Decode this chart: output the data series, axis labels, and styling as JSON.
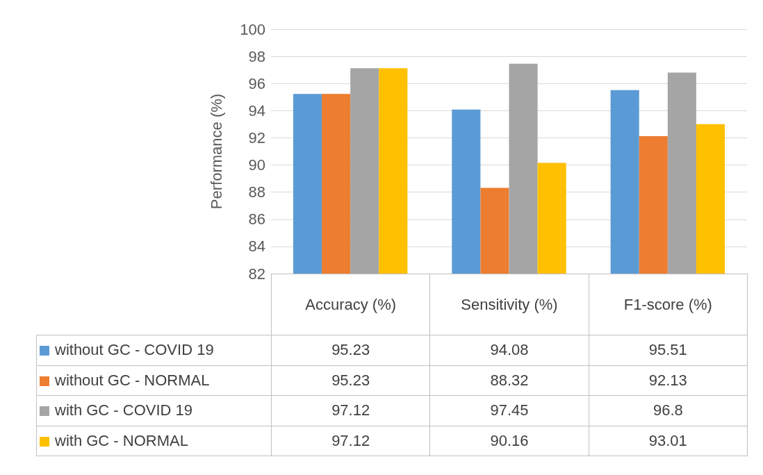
{
  "chart_data": {
    "type": "bar",
    "ylabel": "Performance (%)",
    "categories": [
      "Accuracy (%)",
      "Sensitivity (%)",
      "F1-score (%)"
    ],
    "series": [
      {
        "name": "without GC - COVID 19",
        "color": "#5b9bd5",
        "values": [
          95.23,
          94.08,
          95.51
        ]
      },
      {
        "name": "without GC - NORMAL",
        "color": "#ed7d31",
        "values": [
          95.23,
          88.32,
          92.13
        ]
      },
      {
        "name": "with GC - COVID 19",
        "color": "#a5a5a5",
        "values": [
          97.12,
          97.45,
          96.8
        ]
      },
      {
        "name": "with GC - NORMAL",
        "color": "#ffc000",
        "values": [
          97.12,
          90.16,
          93.01
        ]
      }
    ],
    "ylim": [
      82,
      100
    ],
    "yticks": [
      82,
      84,
      86,
      88,
      90,
      92,
      94,
      96,
      98,
      100
    ],
    "grid": "y",
    "legend": "bottom",
    "data_labels": true
  }
}
